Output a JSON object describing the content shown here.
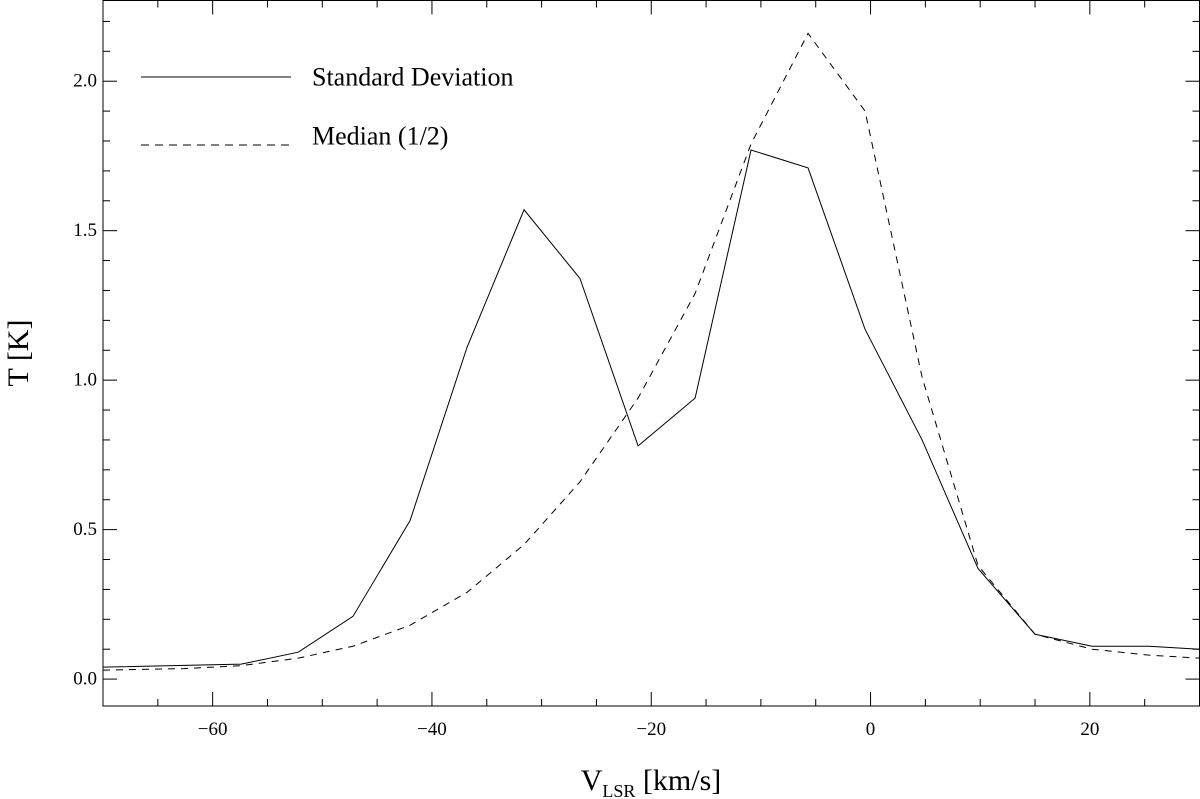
{
  "chart_data": {
    "type": "line",
    "title": "",
    "xlabel": "V",
    "xlabel_sub": "LSR",
    "xlabel_unit": " [km/s]",
    "ylabel": "T [K]",
    "xlim": [
      -70,
      30
    ],
    "ylim": [
      -0.09,
      2.27
    ],
    "xticks": [
      -60,
      -40,
      -20,
      0,
      20
    ],
    "xtick_labels": [
      "−60",
      "−40",
      "−20",
      "0",
      "20"
    ],
    "yticks": [
      0.0,
      0.5,
      1.0,
      1.5,
      2.0
    ],
    "ytick_labels": [
      "0.0",
      "0.5",
      "1.0",
      "1.5",
      "2.0"
    ],
    "x_minor_step": 5,
    "y_minor_step": 0.1,
    "legend_position": "top-left",
    "series": [
      {
        "name": "Standard Deviation",
        "style": "solid",
        "x": [
          -70,
          -57.4,
          -52.2,
          -47.2,
          -42.0,
          -36.8,
          -31.6,
          -26.5,
          -21.2,
          -16.0,
          -10.9,
          -5.7,
          -0.5,
          4.7,
          9.8,
          15.0,
          20.2,
          25.4,
          30
        ],
        "y": [
          0.04,
          0.05,
          0.09,
          0.21,
          0.53,
          1.11,
          1.57,
          1.34,
          0.78,
          0.94,
          1.77,
          1.71,
          1.17,
          0.8,
          0.37,
          0.15,
          0.11,
          0.11,
          0.1
        ]
      },
      {
        "name": "Median (1/2)",
        "style": "dashed",
        "x": [
          -70,
          -62.6,
          -57.4,
          -52.2,
          -47.2,
          -42.0,
          -36.8,
          -31.6,
          -26.5,
          -21.2,
          -16.0,
          -10.9,
          -5.7,
          -0.5,
          4.7,
          9.8,
          15.0,
          20.2,
          25.4,
          30
        ],
        "y": [
          0.03,
          0.035,
          0.045,
          0.07,
          0.11,
          0.18,
          0.29,
          0.45,
          0.66,
          0.94,
          1.29,
          1.79,
          2.16,
          1.9,
          1.01,
          0.38,
          0.15,
          0.1,
          0.08,
          0.07
        ]
      }
    ]
  }
}
